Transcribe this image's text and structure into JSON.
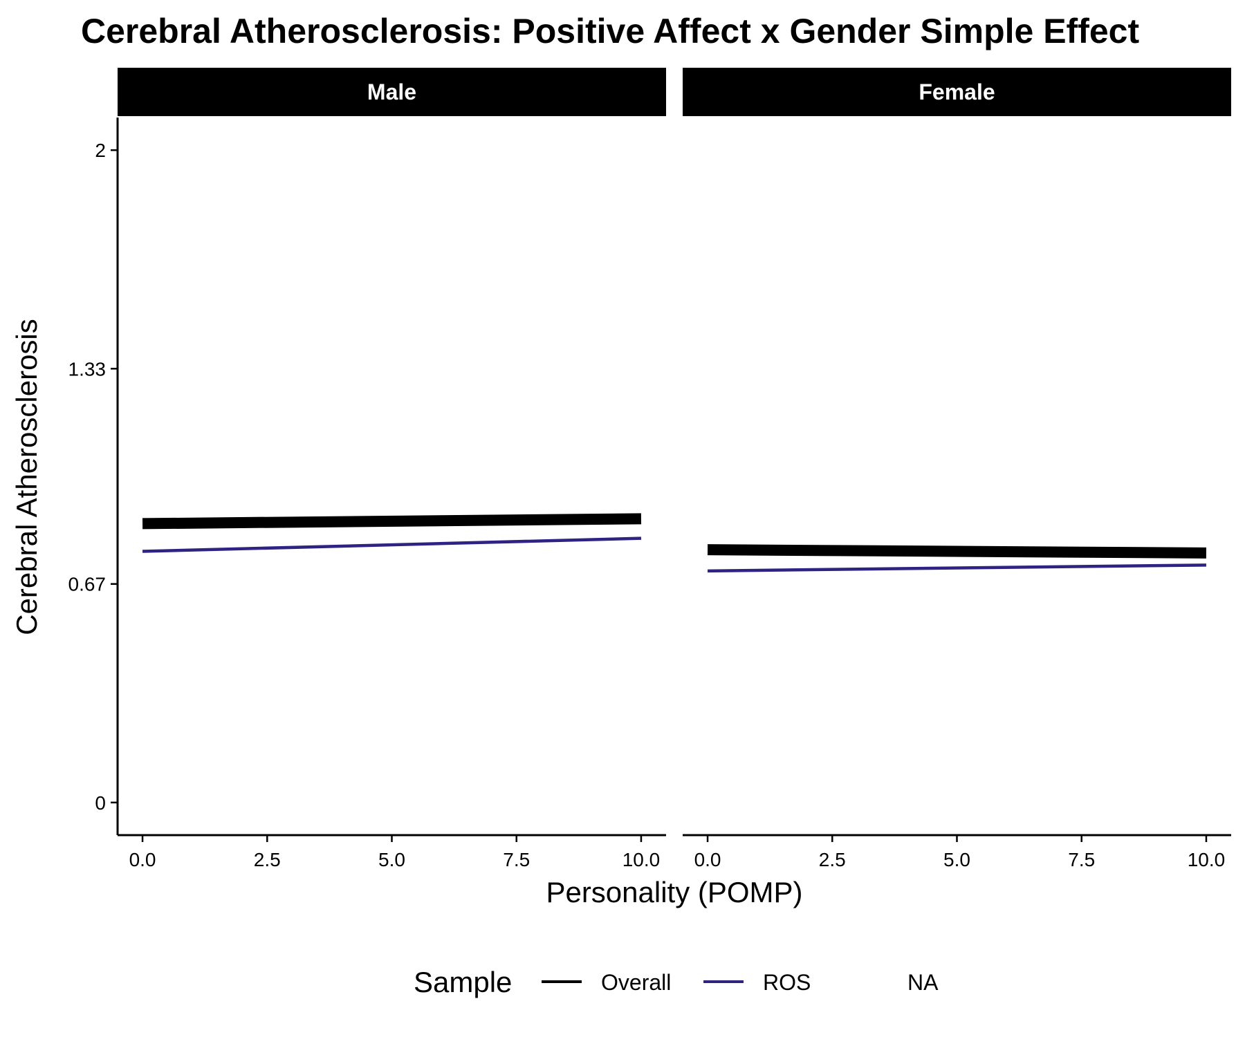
{
  "title": "Cerebral Atherosclerosis: Positive Affect x Gender Simple Effect",
  "chart_data": {
    "type": "line",
    "title": "Cerebral Atherosclerosis: Positive Affect x Gender Simple Effect",
    "xlabel": "Personality (POMP)",
    "ylabel": "Cerebral Atherosclerosis",
    "xlim": [
      -0.5,
      10.5
    ],
    "ylim": [
      -0.1,
      2.1
    ],
    "x_ticks": [
      0,
      2.5,
      5,
      7.5,
      10
    ],
    "x_tick_labels": [
      "0.0",
      "2.5",
      "5.0",
      "7.5",
      "10.0"
    ],
    "y_ticks": [
      0,
      0.67,
      1.33,
      2
    ],
    "y_tick_labels": [
      "0",
      "0.67",
      "1.33",
      "2"
    ],
    "grid": false,
    "legend": {
      "title": "Sample",
      "position": "bottom",
      "entries": [
        {
          "label": "Overall",
          "color": "#000000"
        },
        {
          "label": "ROS",
          "color": "#2e2383"
        },
        {
          "label": "NA",
          "color": "none"
        }
      ]
    },
    "facets": [
      {
        "label": "Male",
        "series": [
          {
            "name": "Overall",
            "color": "#000000",
            "x": [
              0,
              10
            ],
            "y": [
              0.855,
              0.87
            ]
          },
          {
            "name": "ROS",
            "color": "#2e2383",
            "x": [
              0,
              10
            ],
            "y": [
              0.77,
              0.81
            ]
          }
        ]
      },
      {
        "label": "Female",
        "series": [
          {
            "name": "Overall",
            "color": "#000000",
            "x": [
              0,
              10
            ],
            "y": [
              0.775,
              0.765
            ]
          },
          {
            "name": "ROS",
            "color": "#2e2383",
            "x": [
              0,
              10
            ],
            "y": [
              0.71,
              0.728
            ]
          }
        ]
      }
    ]
  }
}
